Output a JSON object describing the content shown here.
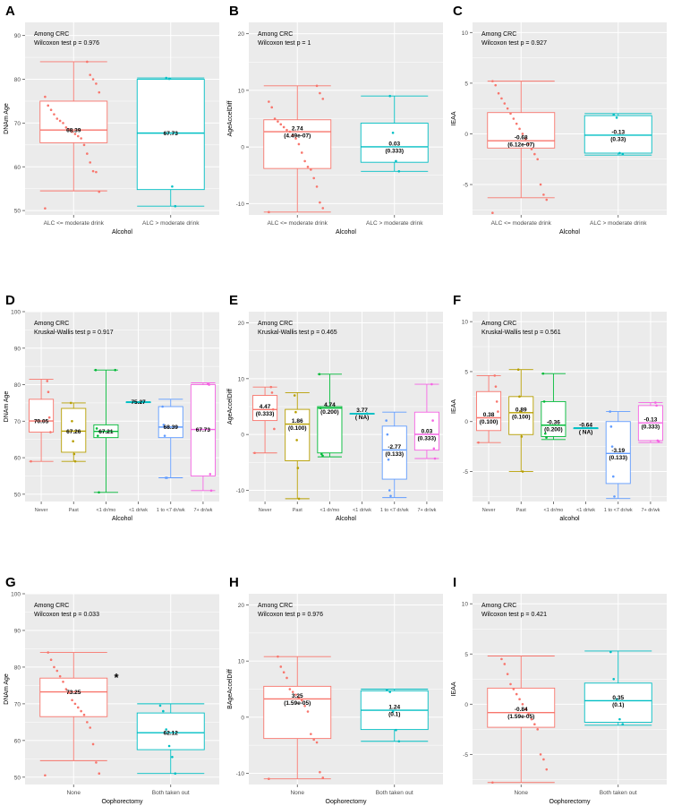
{
  "colors": {
    "panel_bg": "#ebebeb",
    "grid": "#ffffff",
    "text": "#333333",
    "red": "#f8766d",
    "cyan": "#00bfc4",
    "olive": "#b79f00",
    "green": "#00ba38",
    "teal": "#00bfc4",
    "blue": "#619cff",
    "magenta": "#f564e3"
  },
  "chart_data": [
    {
      "letter": "A",
      "type": "box",
      "xlabel": "Alcohol",
      "ylabel": "DNAm Age",
      "ylim": [
        49,
        93
      ],
      "yticks": [
        50,
        60,
        70,
        80,
        90
      ],
      "annotations": [
        "Among CRC",
        "Wilcoxon test p = 0.976"
      ],
      "groups": [
        {
          "name": "ALC <= moderate drink",
          "color": "red",
          "box": [
            54.5,
            65.5,
            68.4,
            75,
            84
          ],
          "label1": "68.39",
          "label2": "",
          "points": [
            50.5,
            54.3,
            58.8,
            59,
            61,
            63,
            65,
            66.5,
            67,
            67.5,
            68,
            68.5,
            69,
            70,
            70.5,
            71,
            72,
            73,
            74,
            76,
            77,
            79,
            80,
            81,
            84
          ]
        },
        {
          "name": "ALC > moderate drink",
          "color": "cyan",
          "box": [
            51,
            54.8,
            67.7,
            80,
            80.3
          ],
          "label1": "67.73",
          "label2": "",
          "points": [
            51,
            55.5,
            80.1,
            80.3
          ]
        }
      ]
    },
    {
      "letter": "B",
      "type": "box",
      "xlabel": "Alcohol",
      "ylabel": "AgeAccelDiff",
      "ylim": [
        -12,
        22
      ],
      "yticks": [
        -10,
        0,
        10,
        20
      ],
      "annotations": [
        "Among CRC",
        "Wilcoxon test p = 1"
      ],
      "groups": [
        {
          "name": "ALC <= moderate drink",
          "color": "red",
          "box": [
            -11.5,
            -3.8,
            2.7,
            4.8,
            10.8
          ],
          "label1": "2.74",
          "label2": "(4.49e-07)",
          "points": [
            -11.5,
            -10.8,
            -9.8,
            -7,
            -5.5,
            -4,
            -3.5,
            -2.5,
            -1,
            0.5,
            1.5,
            2,
            2.7,
            3,
            3.5,
            4,
            4.5,
            5,
            7,
            8,
            8.5,
            9.5,
            10.8
          ]
        },
        {
          "name": "ALC > moderate drink",
          "color": "cyan",
          "box": [
            -4.3,
            -2.7,
            0.03,
            4.2,
            9
          ],
          "label1": "0.03",
          "label2": "(0.333)",
          "points": [
            -4.3,
            -2.5,
            2.5,
            9
          ]
        }
      ]
    },
    {
      "letter": "C",
      "type": "box",
      "xlabel": "Alcohol",
      "ylabel": "IEAA",
      "ylim": [
        -8,
        11
      ],
      "yticks": [
        -5,
        0,
        5,
        10
      ],
      "annotations": [
        "Among CRC",
        "Wilcoxon test p = 0.927"
      ],
      "groups": [
        {
          "name": "ALC <= moderate drink",
          "color": "red",
          "box": [
            -6.3,
            -1.4,
            -0.68,
            2.1,
            5.2
          ],
          "label1": "-0.68",
          "label2": "(6.12e-07)",
          "points": [
            -7.8,
            -6.5,
            -6,
            -5,
            -2.5,
            -2,
            -1.5,
            -1,
            -0.5,
            0,
            0.5,
            1,
            1.5,
            2,
            2.5,
            3,
            3.5,
            4,
            4.8,
            5.2
          ]
        },
        {
          "name": "ALC > moderate drink",
          "color": "cyan",
          "box": [
            -2.1,
            -1.9,
            -0.13,
            1.8,
            2
          ],
          "label1": "-0.13",
          "label2": "(0.33)",
          "points": [
            -2,
            -1.9,
            1.6,
            1.9
          ]
        }
      ]
    },
    {
      "letter": "D",
      "type": "box",
      "xlabel": "Alcohol",
      "ylabel": "DNAm Age",
      "ylim": [
        48,
        100
      ],
      "yticks": [
        50,
        60,
        70,
        80,
        90,
        100
      ],
      "annotations": [
        "Among CRC",
        "Kruskal-Wallis test p = 0.917"
      ],
      "groups": [
        {
          "name": "Never",
          "color": "red",
          "box": [
            59,
            67,
            70.05,
            76,
            81.5
          ],
          "label1": "70.05",
          "label2": "",
          "points": [
            59,
            67,
            71,
            78,
            81
          ]
        },
        {
          "name": "Past",
          "color": "olive",
          "box": [
            59,
            61.5,
            67.26,
            73.5,
            75
          ],
          "label1": "67.26",
          "label2": "",
          "points": [
            59,
            61,
            64.5,
            70,
            75
          ]
        },
        {
          "name": "<1 dr/mo",
          "color": "green",
          "box": [
            50.5,
            65.5,
            67.21,
            69,
            84
          ],
          "label1": "67.21",
          "label2": "",
          "points": [
            50.5,
            66,
            68,
            84,
            84
          ]
        },
        {
          "name": "<1 dr/wk",
          "color": "teal",
          "box": [
            75.27,
            75.27,
            75.27,
            75.27,
            75.27
          ],
          "label1": "75.27",
          "label2": "",
          "points": [
            75.27
          ]
        },
        {
          "name": "1 to <7 dr/wk",
          "color": "blue",
          "box": [
            54.5,
            65.5,
            68.39,
            74,
            76
          ],
          "label1": "68.39",
          "label2": "",
          "points": [
            54.5,
            54.5,
            66,
            69,
            74
          ]
        },
        {
          "name": "7+ dr/wk",
          "color": "magenta",
          "box": [
            51,
            55,
            67.73,
            80,
            80.5
          ],
          "label1": "67.73",
          "label2": "",
          "points": [
            51,
            55.5,
            80,
            80.3
          ]
        }
      ]
    },
    {
      "letter": "E",
      "type": "box",
      "xlabel": "Alcohol",
      "ylabel": "AgeAccelDiff",
      "ylim": [
        -12,
        22
      ],
      "yticks": [
        -10,
        0,
        10,
        20
      ],
      "annotations": [
        "Among CRC",
        "Kruskal-Wallis test p = 0.465"
      ],
      "groups": [
        {
          "name": "Never",
          "color": "red",
          "box": [
            -3.3,
            2.5,
            4.47,
            7,
            8.5
          ],
          "label1": "4.47",
          "label2": "(0.333)",
          "points": [
            -3.3,
            1,
            4.5,
            7.5,
            8.5
          ]
        },
        {
          "name": "Past",
          "color": "olive",
          "box": [
            -11.5,
            -4.7,
            1.86,
            4.5,
            7.5
          ],
          "label1": "1.86",
          "label2": "(0.100)",
          "points": [
            -11.5,
            -6,
            -1,
            4,
            7
          ]
        },
        {
          "name": "<1 dr/mo",
          "color": "green",
          "box": [
            -4,
            -3.3,
            4.74,
            5,
            10.8
          ],
          "label1": "4.74",
          "label2": "(0.200)",
          "points": [
            -3.8,
            -3.5,
            4.7,
            10.8
          ]
        },
        {
          "name": "<1 dr/wk",
          "color": "teal",
          "box": [
            3.77,
            3.77,
            3.77,
            3.77,
            3.77
          ],
          "label1": "3.77",
          "label2": "(  NA)",
          "points": [
            3.77
          ]
        },
        {
          "name": "1 to <7 dr/wk",
          "color": "blue",
          "box": [
            -11.3,
            -8,
            -2.77,
            1.5,
            4
          ],
          "label1": "-2.77",
          "label2": "(0.133)",
          "points": [
            -11,
            -10,
            -4.5,
            0,
            2.5
          ]
        },
        {
          "name": "7+ dr/wk",
          "color": "magenta",
          "box": [
            -4.3,
            -2.8,
            0.03,
            4,
            9
          ],
          "label1": "0.03",
          "label2": "(0.333)",
          "points": [
            -4.3,
            -2.5,
            2.5,
            9
          ]
        }
      ]
    },
    {
      "letter": "F",
      "type": "box",
      "xlabel": "alcohol",
      "ylabel": "IEAA",
      "ylim": [
        -8,
        11
      ],
      "yticks": [
        -5,
        0,
        5,
        10
      ],
      "annotations": [
        "Among CRC",
        "Kruskal-Wallis test p = 0.561"
      ],
      "groups": [
        {
          "name": "Never",
          "color": "red",
          "box": [
            -2.1,
            -0.9,
            0.38,
            3,
            4.6
          ],
          "label1": "0.38",
          "label2": "(0.100)",
          "points": [
            -2.1,
            1,
            2,
            3.5,
            4.6
          ]
        },
        {
          "name": "Past",
          "color": "olive",
          "box": [
            -5,
            -1.3,
            0.89,
            2.5,
            5.2
          ],
          "label1": "0.89",
          "label2": "(0.100)",
          "points": [
            -5,
            -1.5,
            1,
            2.5,
            5.2
          ]
        },
        {
          "name": "<1 dr/mo",
          "color": "green",
          "box": [
            -1.8,
            -1.5,
            -0.36,
            2,
            4.8
          ],
          "label1": "-0.36",
          "label2": "(0.200)",
          "points": [
            -1.6,
            -1.2,
            2,
            4.8
          ]
        },
        {
          "name": "<1 dr/wk",
          "color": "teal",
          "box": [
            -0.64,
            -0.64,
            -0.64,
            -0.64,
            -0.64
          ],
          "label1": "-0.64",
          "label2": "(  NA)",
          "points": [
            -0.64
          ]
        },
        {
          "name": "1 to <7 dr/wk",
          "color": "blue",
          "box": [
            -7.7,
            -6.2,
            -3.19,
            0,
            1
          ],
          "label1": "-3.19",
          "label2": "(0.133)",
          "points": [
            -7.5,
            -5.5,
            -2.5,
            -0.5,
            1
          ]
        },
        {
          "name": "7+ dr/wk",
          "color": "magenta",
          "box": [
            -2.1,
            -1.9,
            -0.13,
            1.6,
            1.9
          ],
          "label1": "-0.13",
          "label2": "(0.333)",
          "points": [
            -2,
            -1.9,
            1.6,
            1.9
          ]
        }
      ]
    },
    {
      "letter": "G",
      "type": "box",
      "xlabel": "Oophorectomy",
      "ylabel": "DNAm Age",
      "ylim": [
        48,
        100
      ],
      "yticks": [
        50,
        60,
        70,
        80,
        90,
        100
      ],
      "annotations": [
        "Among CRC",
        "Wilcoxon test p = 0.033"
      ],
      "significance": "*",
      "groups": [
        {
          "name": "None",
          "color": "red",
          "box": [
            54.5,
            66.5,
            73.25,
            77,
            84
          ],
          "label1": "73.25",
          "label2": "",
          "points": [
            50.5,
            51,
            54,
            59,
            63.5,
            65,
            67,
            68,
            69,
            70,
            71,
            73,
            74,
            76,
            77.5,
            79,
            80,
            82,
            84
          ]
        },
        {
          "name": "Both taken out",
          "color": "cyan",
          "box": [
            51,
            57.5,
            62.12,
            67.5,
            70
          ],
          "label1": "62.12",
          "label2": "",
          "points": [
            51,
            55.5,
            58.5,
            63,
            68,
            69.5
          ]
        }
      ]
    },
    {
      "letter": "H",
      "type": "box",
      "xlabel": "Oophorectomy",
      "ylabel": "BAgeAccelDiff",
      "ylim": [
        -12,
        22
      ],
      "yticks": [
        -10,
        0,
        10,
        20
      ],
      "annotations": [
        "Among CRC",
        "Wilcoxon test p = 0.976"
      ],
      "groups": [
        {
          "name": "None",
          "color": "red",
          "box": [
            -11,
            -3.8,
            3.25,
            5.5,
            10.8
          ],
          "label1": "3.25",
          "label2": "(1.59e-05)",
          "points": [
            -11,
            -10.8,
            -9.8,
            -4.5,
            -4,
            -3,
            1,
            2,
            3,
            3.5,
            4,
            4.5,
            5,
            7,
            8,
            9,
            10.8
          ]
        },
        {
          "name": "Both taken out",
          "color": "cyan",
          "box": [
            -4.3,
            -2.2,
            1.24,
            4.7,
            5
          ],
          "label1": "1.24",
          "label2": "(0.1)",
          "points": [
            -4.3,
            -2.3,
            1,
            4.5,
            4.8
          ]
        }
      ]
    },
    {
      "letter": "I",
      "type": "box",
      "xlabel": "Oophorectomy",
      "ylabel": "IEAA",
      "ylim": [
        -8,
        11
      ],
      "yticks": [
        -5,
        0,
        5,
        10
      ],
      "annotations": [
        "Among CRC",
        "Wilcoxon test p = 0.421"
      ],
      "groups": [
        {
          "name": "None",
          "color": "red",
          "box": [
            -7.8,
            -2.3,
            -0.84,
            1.6,
            4.8
          ],
          "label1": "-0.84",
          "label2": "(1.59e-05)",
          "points": [
            -7.8,
            -6.5,
            -5.5,
            -5,
            -2.5,
            -2,
            -1.5,
            -1,
            -0.5,
            0,
            0.5,
            1,
            1.5,
            2,
            3,
            4,
            4.5
          ]
        },
        {
          "name": "Both taken out",
          "color": "cyan",
          "box": [
            -2.1,
            -1.8,
            0.35,
            2.1,
            5.3
          ],
          "label1": "0.35",
          "label2": "(0.1)",
          "points": [
            -2,
            -1.5,
            0.5,
            2.5,
            5.2
          ]
        }
      ]
    }
  ]
}
